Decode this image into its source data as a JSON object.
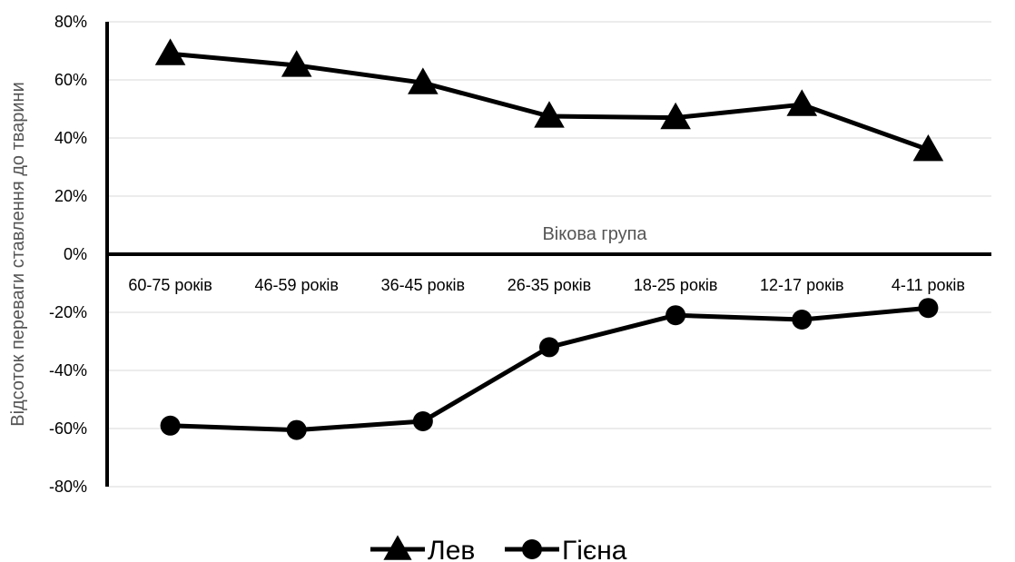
{
  "chart_data": {
    "type": "line",
    "categories": [
      "60-75 років",
      "46-59 років",
      "36-45 років",
      "26-35 років",
      "18-25 років",
      "12-17 років",
      "4-11 років"
    ],
    "series": [
      {
        "name": "Лев",
        "values": [
          69,
          65,
          59,
          47.5,
          47,
          51.5,
          36
        ],
        "marker": "triangle",
        "color": "#000000"
      },
      {
        "name": "Гієна",
        "values": [
          -59,
          -60.5,
          -57.5,
          -32,
          -21,
          -22.5,
          -18.5
        ],
        "marker": "circle",
        "color": "#000000"
      }
    ],
    "xlabel": "Вікова група",
    "ylabel": "Відсоток переваги ставлення до тварини",
    "ylim": [
      -80,
      80
    ],
    "yticks": [
      80,
      60,
      40,
      20,
      0,
      -20,
      -40,
      -60,
      -80
    ],
    "ytick_labels": [
      "80%",
      "60%",
      "40%",
      "20%",
      "0%",
      "-20%",
      "-40%",
      "-60%",
      "-80%"
    ],
    "grid": true,
    "legend_position": "bottom"
  }
}
